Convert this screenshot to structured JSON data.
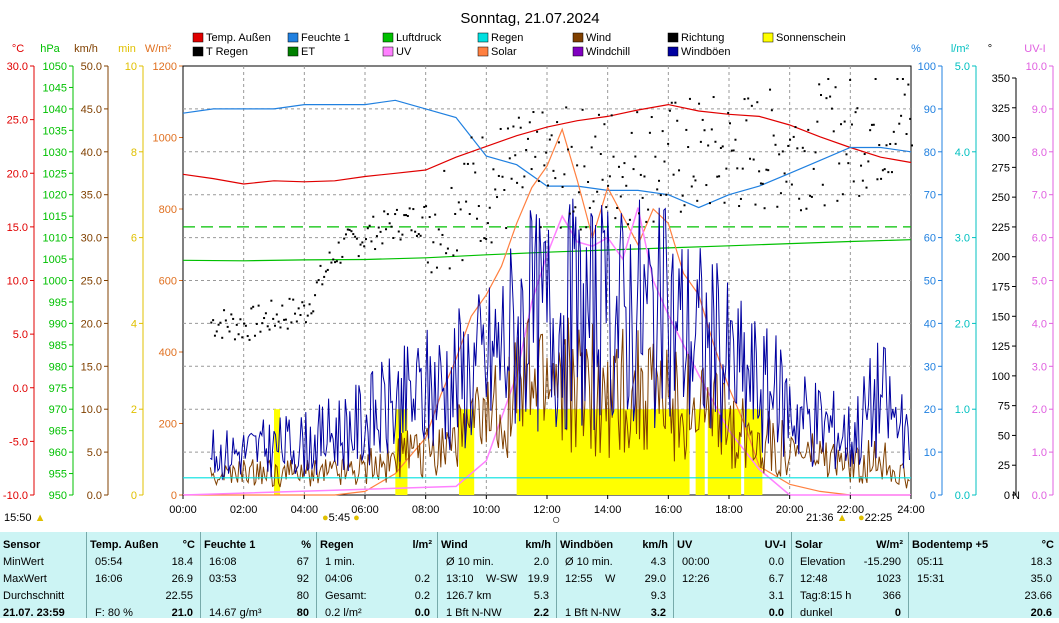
{
  "title": "Sonntag, 21.07.2024",
  "legend": [
    {
      "label": "Temp. Außen",
      "color": "#e00000"
    },
    {
      "label": "Feuchte 1",
      "color": "#2080e0"
    },
    {
      "label": "Luftdruck",
      "color": "#00c000"
    },
    {
      "label": "Regen",
      "color": "#00e0e0"
    },
    {
      "label": "Wind",
      "color": "#804000"
    },
    {
      "label": "Richtung",
      "color": "#000000"
    },
    {
      "label": "Sonnenschein",
      "color": "#ffff00"
    },
    {
      "label": "T Regen",
      "color": "#000000"
    },
    {
      "label": "ET",
      "color": "#008000"
    },
    {
      "label": "UV",
      "color": "#ff80ff"
    },
    {
      "label": "Solar",
      "color": "#ff8040"
    },
    {
      "label": "Windchill",
      "color": "#8000c0"
    },
    {
      "label": "Windböen",
      "color": "#0000a0"
    }
  ],
  "axes": {
    "temp": {
      "unit": "°C",
      "color": "#e00000",
      "ticks": [
        "30.0",
        "25.0",
        "20.0",
        "15.0",
        "10.0",
        "5.0",
        "0.0",
        "-5.0",
        "-10.0"
      ]
    },
    "press": {
      "unit": "hPa",
      "color": "#00c000",
      "ticks": [
        "1050",
        "1045",
        "1040",
        "1035",
        "1030",
        "1025",
        "1020",
        "1015",
        "1010",
        "1005",
        "1000",
        "995",
        "990",
        "985",
        "980",
        "975",
        "970",
        "965",
        "960",
        "955",
        "950"
      ]
    },
    "wind": {
      "unit": "km/h",
      "color": "#804000",
      "ticks": [
        "50.0",
        "45.0",
        "40.0",
        "35.0",
        "30.0",
        "25.0",
        "20.0",
        "15.0",
        "10.0",
        "5.0",
        "0.0"
      ]
    },
    "min": {
      "unit": "min",
      "color": "#e0c000",
      "ticks": [
        "10",
        "8",
        "6",
        "4",
        "2",
        "0"
      ]
    },
    "solar": {
      "unit": "W/m²",
      "color": "#e07020",
      "ticks": [
        "1200",
        "1000",
        "800",
        "600",
        "400",
        "200",
        "0"
      ]
    },
    "hum": {
      "unit": "%",
      "color": "#2080e0",
      "ticks": [
        "100",
        "90",
        "80",
        "70",
        "60",
        "50",
        "40",
        "30",
        "20",
        "10",
        "0"
      ]
    },
    "rain": {
      "unit": "l/m²",
      "color": "#00c0c0",
      "ticks": [
        "5.0",
        "4.0",
        "3.0",
        "2.0",
        "1.0",
        "0.0"
      ]
    },
    "dir": {
      "unit": "°",
      "color": "#000000",
      "ticks": [
        "350",
        "325",
        "300",
        "275",
        "250",
        "225",
        "200",
        "175",
        "150",
        "125",
        "100",
        "75",
        "50",
        "25",
        "0"
      ],
      "extra": "N"
    },
    "uv": {
      "unit": "UV-I",
      "color": "#e060e0",
      "ticks": [
        "10.0",
        "9.0",
        "8.0",
        "7.0",
        "6.0",
        "5.0",
        "4.0",
        "3.0",
        "2.0",
        "1.0",
        "0.0"
      ]
    }
  },
  "xticks": [
    "00:00",
    "02:00",
    "04:00",
    "06:00",
    "08:00",
    "10:00",
    "12:00",
    "14:00",
    "16:00",
    "18:00",
    "20:00",
    "22:00",
    "24:00"
  ],
  "sun": {
    "rise": "15:50",
    "rise2": "5:45",
    "set": "21:36",
    "set2": "22:25"
  },
  "chart_data": {
    "type": "line",
    "x_unit": "time of day (h)",
    "series": [
      {
        "name": "Temp. Außen",
        "axis": "°C",
        "x": [
          0,
          1,
          2,
          3,
          4,
          5,
          6,
          7,
          8,
          9,
          10,
          11,
          12,
          13,
          14,
          15,
          16,
          17,
          18,
          19,
          20,
          21,
          22,
          23,
          24
        ],
        "values": [
          19.9,
          19.5,
          19.0,
          19.3,
          19.2,
          19.3,
          19.7,
          20.0,
          20.3,
          21.5,
          22.5,
          23.5,
          24.3,
          24.9,
          25.3,
          25.9,
          26.4,
          25.8,
          25.5,
          25.3,
          24.5,
          23.4,
          22.4,
          21.5,
          21.0
        ]
      },
      {
        "name": "Feuchte 1",
        "axis": "%",
        "x": [
          0,
          1,
          2,
          3,
          4,
          5,
          6,
          7,
          8,
          9,
          10,
          11,
          12,
          13,
          14,
          15,
          16,
          17,
          18,
          19,
          20,
          21,
          22,
          23,
          24
        ],
        "values": [
          89,
          90,
          90,
          90,
          91,
          91,
          91,
          92,
          90,
          88,
          79,
          77,
          72,
          72,
          71,
          71,
          70,
          67,
          70,
          72,
          75,
          78,
          81,
          81,
          80
        ]
      },
      {
        "name": "Luftdruck",
        "axis": "hPa",
        "x": [
          0,
          2,
          4,
          6,
          8,
          10,
          12,
          14,
          16,
          18,
          20,
          22,
          24
        ],
        "values": [
          1004.7,
          1004.6,
          1004.8,
          1004.9,
          1005.3,
          1006.0,
          1006.6,
          1007.1,
          1007.6,
          1008.1,
          1008.6,
          1009.1,
          1009.5
        ]
      },
      {
        "name": "Solar",
        "axis": "W/m²",
        "x": [
          0,
          4,
          5,
          6,
          7,
          8,
          8.5,
          9,
          9.5,
          10,
          10.5,
          11,
          11.5,
          12,
          12.5,
          13,
          13.5,
          14,
          14.5,
          15,
          15.5,
          16,
          16.5,
          17,
          17.5,
          18,
          18.5,
          19,
          20,
          21,
          22,
          24
        ],
        "values": [
          0,
          0,
          0,
          10,
          60,
          160,
          280,
          380,
          500,
          560,
          640,
          760,
          860,
          920,
          1023,
          880,
          720,
          860,
          780,
          700,
          800,
          760,
          620,
          560,
          420,
          300,
          200,
          80,
          30,
          10,
          0,
          0
        ]
      },
      {
        "name": "UV",
        "axis": "UV-I",
        "x": [
          0,
          9,
          10,
          11,
          11.5,
          12,
          12.5,
          13,
          13.5,
          14,
          14.5,
          15,
          15.5,
          16,
          16.5,
          17,
          18,
          19,
          20,
          24
        ],
        "values": [
          0,
          0.2,
          0.8,
          2.8,
          4.5,
          5.6,
          6.5,
          5.9,
          5.8,
          6.0,
          5.5,
          6.7,
          5.0,
          4.2,
          3.5,
          2.8,
          1.5,
          0.6,
          0,
          0
        ]
      },
      {
        "name": "Wind",
        "axis": "km/h",
        "x": [
          0,
          2,
          4,
          6,
          8,
          10,
          11,
          12,
          13,
          14,
          15,
          16,
          17,
          18,
          20,
          22,
          23,
          24
        ],
        "values": [
          2,
          3,
          3,
          4,
          6,
          10,
          14,
          16,
          15,
          14,
          14,
          13,
          12,
          9,
          6,
          4,
          5,
          2
        ]
      },
      {
        "name": "Windböen",
        "axis": "km/h",
        "x": [
          0,
          2,
          4,
          6,
          8,
          10,
          11,
          12,
          13,
          14,
          15,
          16,
          17,
          18,
          20,
          22,
          23,
          24
        ],
        "values": [
          5,
          6,
          7,
          10,
          14,
          18,
          23,
          25,
          25,
          24,
          26,
          24,
          22,
          18,
          12,
          8,
          14,
          6
        ]
      },
      {
        "name": "Richtung",
        "axis": "°",
        "x": [
          1,
          2,
          3,
          4,
          5,
          6,
          7,
          8,
          9,
          10,
          12,
          14,
          16,
          18,
          20,
          22,
          23,
          24
        ],
        "values": [
          150,
          147,
          155,
          160,
          210,
          225,
          235,
          240,
          255,
          270,
          280,
          285,
          290,
          295,
          300,
          310,
          320,
          330
        ]
      },
      {
        "name": "Regen",
        "axis": "l/m²",
        "x": [
          0,
          24
        ],
        "values": [
          0.2,
          0.2
        ]
      }
    ],
    "ylim": {
      "°C": [
        -10,
        30
      ],
      "hPa": [
        950,
        1050
      ],
      "km/h": [
        0,
        50
      ],
      "min": [
        0,
        10
      ],
      "W/m²": [
        0,
        1200
      ],
      "%": [
        0,
        100
      ],
      "l/m²": [
        0,
        5
      ],
      "°": [
        0,
        360
      ],
      "UV-I": [
        0,
        10
      ]
    },
    "xlim": [
      0,
      24
    ],
    "grid": true
  },
  "stats": {
    "cols": [
      {
        "h1": "Sensor",
        "h2": "",
        "rows": [
          [
            "MinWert",
            "",
            ""
          ],
          [
            "MaxWert",
            "",
            ""
          ],
          [
            "Durchschnitt",
            "",
            ""
          ],
          [
            "21.07.  23:59",
            "",
            ""
          ]
        ]
      },
      {
        "h1": "Temp. Außen",
        "h2": "°C",
        "rows": [
          [
            "05:54",
            "",
            "18.4"
          ],
          [
            "16:06",
            "",
            "26.9"
          ],
          [
            "",
            "",
            "22.55"
          ],
          [
            "F: 80 %",
            "",
            "21.0"
          ]
        ]
      },
      {
        "h1": "Feuchte 1",
        "h2": "%",
        "rows": [
          [
            "16:08",
            "",
            "67"
          ],
          [
            "03:53",
            "",
            "92"
          ],
          [
            "",
            "",
            "80"
          ],
          [
            "14.67 g/m³",
            "",
            "80"
          ]
        ]
      },
      {
        "h1": "Regen",
        "h2": "l/m²",
        "rows": [
          [
            "1 min.",
            "",
            ""
          ],
          [
            "04:06",
            "",
            "0.2"
          ],
          [
            "Gesamt:",
            "",
            "0.2"
          ],
          [
            "0.2 l/m²",
            "",
            "0.0"
          ]
        ]
      },
      {
        "h1": "Wind",
        "h2": "km/h",
        "rows": [
          [
            "Ø 10 min.",
            "",
            "2.0"
          ],
          [
            "13:10",
            "W-SW",
            "19.9"
          ],
          [
            "126.7 km",
            "",
            "5.3"
          ],
          [
            "1 Bft N-NW",
            "",
            "2.2"
          ]
        ]
      },
      {
        "h1": "Windböen",
        "h2": "km/h",
        "rows": [
          [
            "Ø 10 min.",
            "",
            "4.3"
          ],
          [
            "12:55",
            "W",
            "29.0"
          ],
          [
            "",
            "",
            "9.3"
          ],
          [
            "1 Bft N-NW",
            "",
            "3.2"
          ]
        ]
      },
      {
        "h1": "UV",
        "h2": "UV-I",
        "rows": [
          [
            "00:00",
            "",
            "0.0"
          ],
          [
            "12:26",
            "",
            "6.7"
          ],
          [
            "",
            "",
            "3.1"
          ],
          [
            "",
            "",
            "0.0"
          ]
        ]
      },
      {
        "h1": "Solar",
        "h2": "W/m²",
        "rows": [
          [
            "Elevation",
            "",
            "-15.290"
          ],
          [
            "12:48",
            "",
            "1023"
          ],
          [
            "Tag:8:15 h",
            "",
            "366"
          ],
          [
            "dunkel",
            "",
            "0"
          ]
        ]
      },
      {
        "h1": "Bodentemp +5",
        "h2": "°C",
        "rows": [
          [
            "05:11",
            "",
            "18.3"
          ],
          [
            "15:31",
            "",
            "35.0"
          ],
          [
            "",
            "",
            "23.66"
          ],
          [
            "",
            "",
            "20.6"
          ]
        ]
      }
    ]
  }
}
